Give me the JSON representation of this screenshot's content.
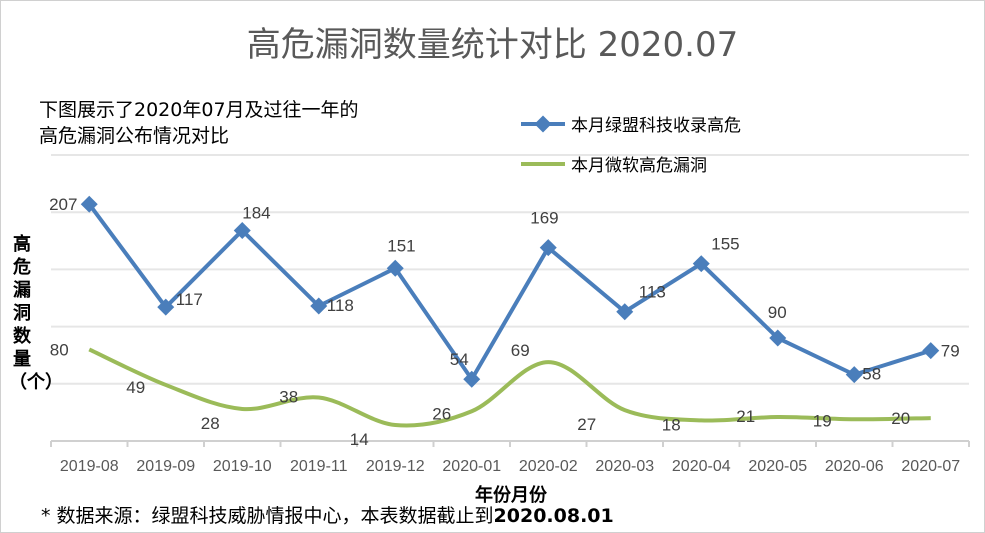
{
  "title": "高危漏洞数量统计对比 2020.07",
  "subtitle": "下图展示了2020年07月及过往一年的\n高危漏洞公布情况对比",
  "note_prefix": "* 数据来源：绿盟科技威胁情报中心，本表数据截止到",
  "note_date": "2020.08.01",
  "colors": {
    "series1": "#4a7ebb",
    "series2": "#9bbb59",
    "grid": "#e6e6e6",
    "text": "#404040"
  },
  "chart_data": {
    "type": "line",
    "xlabel": "年份月份",
    "ylabel": "高危漏洞数量（个）",
    "ylim": [
      0,
      250
    ],
    "grid": true,
    "legend": "top-right",
    "categories": [
      "2019-08",
      "2019-09",
      "2019-10",
      "2019-11",
      "2019-12",
      "2020-01",
      "2020-02",
      "2020-03",
      "2020-04",
      "2020-05",
      "2020-06",
      "2020-07"
    ],
    "series": [
      {
        "name": "本月绿盟科技收录高危",
        "marker": "diamond",
        "values": [
          207,
          117,
          184,
          118,
          151,
          54,
          169,
          113,
          155,
          90,
          58,
          79
        ]
      },
      {
        "name": "本月微软高危漏洞",
        "smooth": true,
        "values": [
          80,
          49,
          28,
          38,
          14,
          26,
          69,
          27,
          18,
          21,
          19,
          20
        ]
      }
    ]
  }
}
